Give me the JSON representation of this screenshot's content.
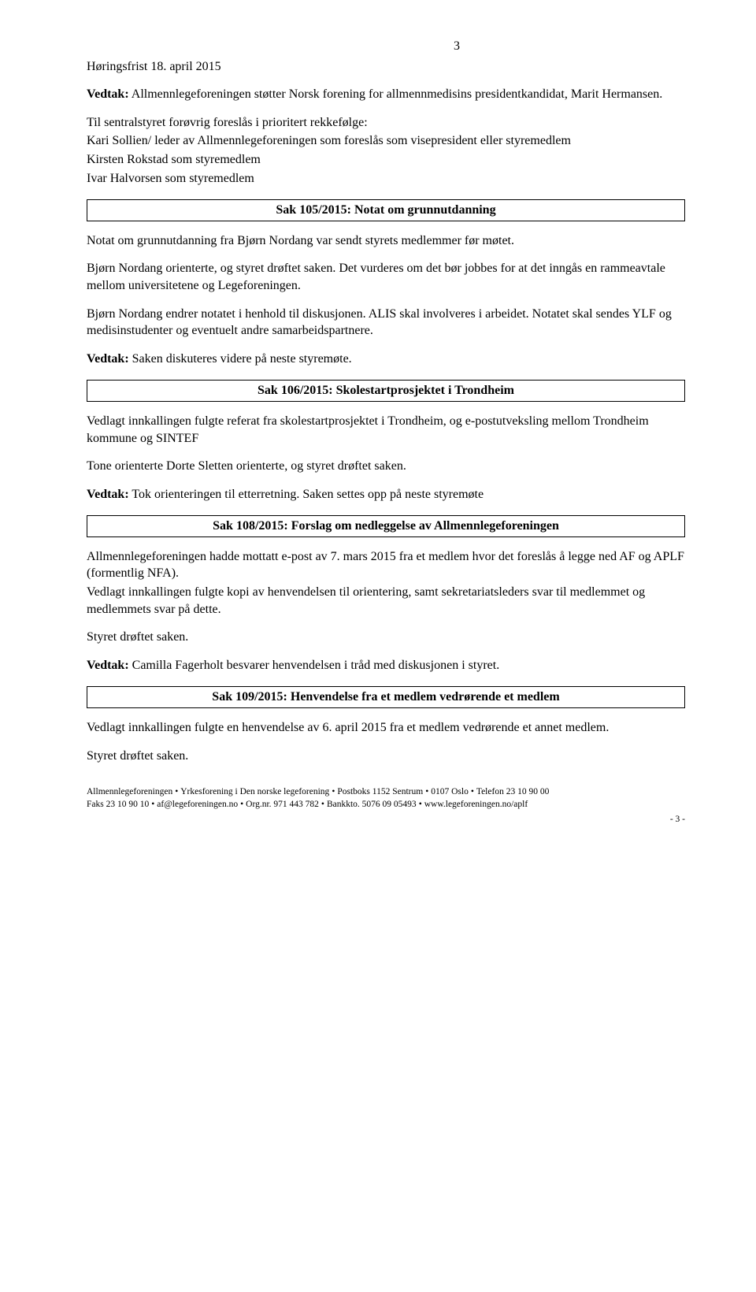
{
  "page_number_top": "3",
  "line_top": "Høringsfrist 18. april 2015",
  "vedtak1": {
    "prefix": "Vedtak:",
    "text": " Allmennlegeforeningen støtter Norsk forening for allmennmedisins presidentkandidat, Marit Hermansen."
  },
  "para2_line1": "Til sentralstyret forøvrig foreslås i prioritert rekkefølge:",
  "para2_line2": "Kari Sollien/ leder av Allmennlegeforeningen som foreslås som visepresident eller styremedlem",
  "para2_line3": "Kirsten Rokstad som styremedlem",
  "para2_line4": "Ivar Halvorsen som styremedlem",
  "sak105_title": "Sak 105/2015: Notat om grunnutdanning",
  "s105_p1": "Notat om grunnutdanning fra Bjørn Nordang var sendt styrets medlemmer før møtet.",
  "s105_p2": "Bjørn Nordang orienterte, og styret drøftet saken. Det vurderes om det bør jobbes for at det inngås en rammeavtale mellom universitetene og Legeforeningen.",
  "s105_p3": "Bjørn Nordang endrer notatet i henhold til diskusjonen. ALIS skal involveres i arbeidet. Notatet skal sendes YLF og medisinstudenter og eventuelt andre samarbeidspartnere.",
  "s105_vedtak": {
    "prefix": "Vedtak:",
    "text": " Saken diskuteres videre på neste styremøte."
  },
  "sak106_title": "Sak 106/2015: Skolestartprosjektet i Trondheim",
  "s106_p1": "Vedlagt innkallingen fulgte referat fra skolestartprosjektet i Trondheim, og e-postutveksling mellom Trondheim kommune og SINTEF",
  "s106_p2": "Tone orienterte Dorte Sletten orienterte, og styret drøftet saken.",
  "s106_vedtak": {
    "prefix": "Vedtak:",
    "text": " Tok orienteringen til etterretning. Saken settes opp på neste styremøte"
  },
  "sak108_title": "Sak 108/2015: Forslag om nedleggelse av Allmennlegeforeningen",
  "s108_p1": "Allmennlegeforeningen hadde mottatt e-post av 7. mars 2015 fra et medlem hvor det foreslås å legge ned AF og APLF (formentlig NFA).",
  "s108_p2": "Vedlagt innkallingen fulgte kopi av henvendelsen til orientering, samt sekretariatsleders svar til medlemmet og medlemmets svar på dette.",
  "s108_p3": "Styret drøftet saken.",
  "s108_vedtak": {
    "prefix": "Vedtak:",
    "text": " Camilla Fagerholt besvarer henvendelsen i tråd med diskusjonen i styret."
  },
  "sak109_title": "Sak 109/2015: Henvendelse fra et medlem vedrørende et medlem",
  "s109_p1": "Vedlagt innkallingen fulgte en henvendelse av 6. april 2015 fra et medlem vedrørende et annet medlem.",
  "s109_p2": "Styret drøftet saken.",
  "footer": {
    "line1_parts": [
      "Allmennlegeforeningen",
      "Yrkesforening i Den norske legeforening",
      "Postboks 1152 Sentrum",
      "0107 Oslo",
      "Telefon 23 10 90 00"
    ],
    "line2_parts": [
      "Faks 23 10 90 10",
      "af@legeforeningen.no",
      "Org.nr. 971 443 782",
      "Bankkto. 5076 09 05493",
      "www.legeforeningen.no/aplf"
    ]
  },
  "page_end": "- 3 -"
}
